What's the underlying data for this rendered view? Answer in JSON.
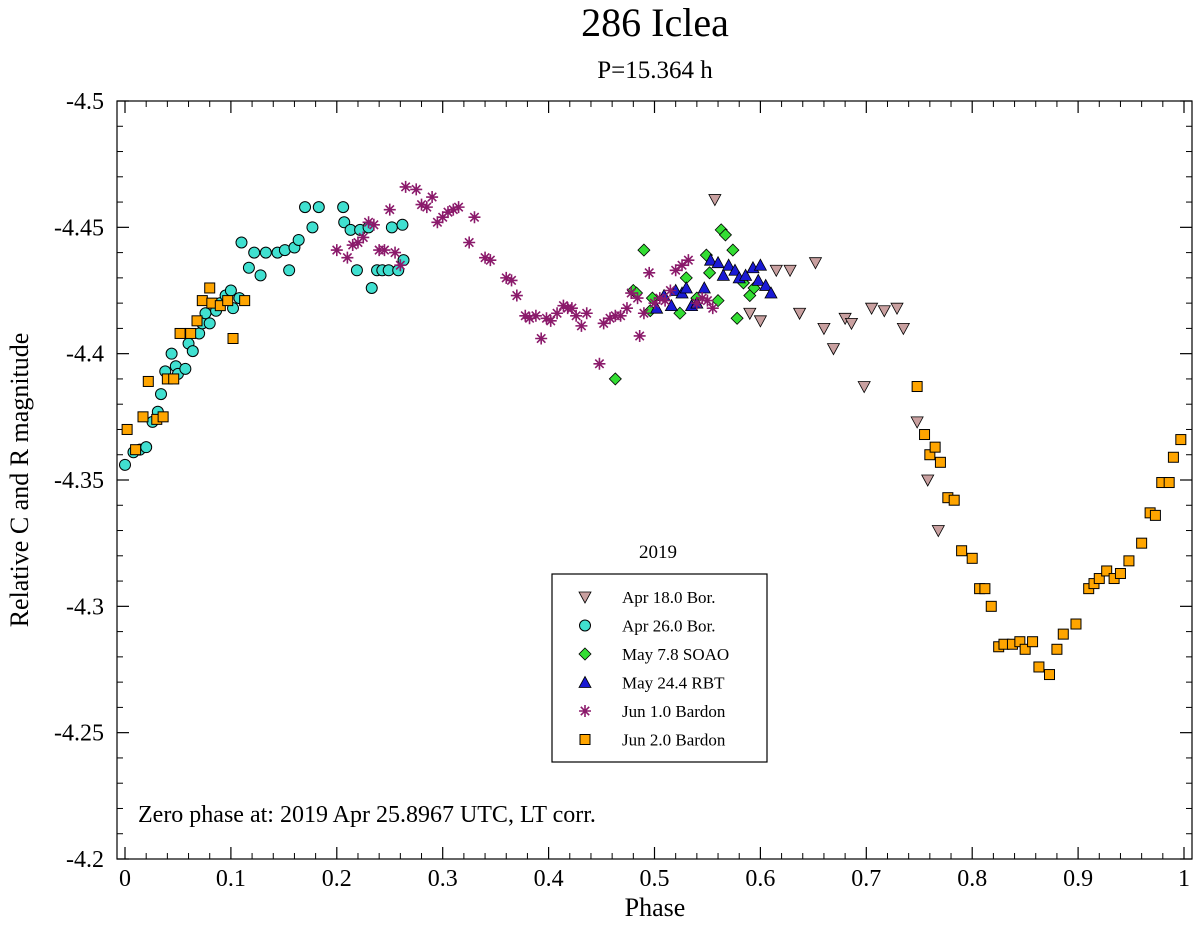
{
  "chart_data": {
    "type": "scatter",
    "title": "286 Iclea",
    "subtitle": "P=15.364 h",
    "xlabel": "Phase",
    "ylabel": "Relative C and R magnitude",
    "xlim": [
      0,
      1
    ],
    "ylim": [
      -4.5,
      -4.2
    ],
    "y_inverted": true,
    "xticks": [
      0,
      0.1,
      0.2,
      0.3,
      0.4,
      0.5,
      0.6,
      0.7,
      0.8,
      0.9,
      1
    ],
    "xtick_labels": [
      "0",
      "0.1",
      "0.2",
      "0.3",
      "0.4",
      "0.5",
      "0.6",
      "0.7",
      "0.8",
      "0.9",
      "1"
    ],
    "yticks": [
      -4.5,
      -4.45,
      -4.4,
      -4.35,
      -4.3,
      -4.25,
      -4.2
    ],
    "ytick_labels": [
      "-4.5",
      "-4.45",
      "-4.4",
      "-4.35",
      "-4.3",
      "-4.25",
      "-4.2"
    ],
    "grid": false,
    "legend": {
      "title": "2019",
      "position": "bottom-center"
    },
    "annotation": "Zero phase at: 2019 Apr 25.8967 UTC, LT corr.",
    "series": [
      {
        "name": "Apr 18.0 Bor.",
        "marker": "triangle-down",
        "color": "#c9a0a0",
        "points": [
          [
            0.557,
            -4.461
          ],
          [
            0.59,
            -4.416
          ],
          [
            0.6,
            -4.413
          ],
          [
            0.615,
            -4.433
          ],
          [
            0.628,
            -4.433
          ],
          [
            0.637,
            -4.416
          ],
          [
            0.652,
            -4.436
          ],
          [
            0.66,
            -4.41
          ],
          [
            0.669,
            -4.402
          ],
          [
            0.68,
            -4.414
          ],
          [
            0.686,
            -4.412
          ],
          [
            0.698,
            -4.387
          ],
          [
            0.705,
            -4.418
          ],
          [
            0.717,
            -4.417
          ],
          [
            0.729,
            -4.418
          ],
          [
            0.735,
            -4.41
          ],
          [
            0.748,
            -4.373
          ],
          [
            0.758,
            -4.35
          ],
          [
            0.768,
            -4.33
          ]
        ]
      },
      {
        "name": "Apr 26.0 Bor.",
        "marker": "circle",
        "color": "#40e0d0",
        "points": [
          [
            0.0,
            -4.356
          ],
          [
            0.008,
            -4.361
          ],
          [
            0.014,
            -4.362
          ],
          [
            0.02,
            -4.363
          ],
          [
            0.026,
            -4.373
          ],
          [
            0.031,
            -4.377
          ],
          [
            0.034,
            -4.384
          ],
          [
            0.038,
            -4.393
          ],
          [
            0.044,
            -4.4
          ],
          [
            0.048,
            -4.395
          ],
          [
            0.05,
            -4.392
          ],
          [
            0.057,
            -4.394
          ],
          [
            0.06,
            -4.404
          ],
          [
            0.064,
            -4.401
          ],
          [
            0.07,
            -4.408
          ],
          [
            0.073,
            -4.412
          ],
          [
            0.076,
            -4.416
          ],
          [
            0.08,
            -4.412
          ],
          [
            0.086,
            -4.417
          ],
          [
            0.09,
            -4.42
          ],
          [
            0.095,
            -4.423
          ],
          [
            0.1,
            -4.425
          ],
          [
            0.102,
            -4.418
          ],
          [
            0.108,
            -4.422
          ],
          [
            0.11,
            -4.444
          ],
          [
            0.117,
            -4.434
          ],
          [
            0.122,
            -4.44
          ],
          [
            0.128,
            -4.431
          ],
          [
            0.133,
            -4.44
          ],
          [
            0.144,
            -4.44
          ],
          [
            0.151,
            -4.441
          ],
          [
            0.155,
            -4.433
          ],
          [
            0.16,
            -4.442
          ],
          [
            0.164,
            -4.445
          ],
          [
            0.17,
            -4.458
          ],
          [
            0.177,
            -4.45
          ],
          [
            0.183,
            -4.458
          ],
          [
            0.206,
            -4.458
          ],
          [
            0.207,
            -4.452
          ],
          [
            0.213,
            -4.449
          ],
          [
            0.219,
            -4.433
          ],
          [
            0.222,
            -4.449
          ],
          [
            0.23,
            -4.45
          ],
          [
            0.233,
            -4.426
          ],
          [
            0.238,
            -4.433
          ],
          [
            0.243,
            -4.433
          ],
          [
            0.249,
            -4.433
          ],
          [
            0.252,
            -4.45
          ],
          [
            0.258,
            -4.433
          ],
          [
            0.262,
            -4.451
          ],
          [
            0.263,
            -4.437
          ]
        ]
      },
      {
        "name": "May 7.8 SOAO",
        "marker": "diamond",
        "color": "#33dd33",
        "points": [
          [
            0.463,
            -4.39
          ],
          [
            0.48,
            -4.425
          ],
          [
            0.483,
            -4.424
          ],
          [
            0.49,
            -4.441
          ],
          [
            0.496,
            -4.417
          ],
          [
            0.498,
            -4.422
          ],
          [
            0.524,
            -4.416
          ],
          [
            0.53,
            -4.43
          ],
          [
            0.54,
            -4.422
          ],
          [
            0.549,
            -4.439
          ],
          [
            0.552,
            -4.432
          ],
          [
            0.56,
            -4.421
          ],
          [
            0.563,
            -4.449
          ],
          [
            0.567,
            -4.447
          ],
          [
            0.574,
            -4.441
          ],
          [
            0.578,
            -4.414
          ],
          [
            0.584,
            -4.428
          ],
          [
            0.59,
            -4.423
          ],
          [
            0.594,
            -4.426
          ]
        ]
      },
      {
        "name": "May 24.4 RBT",
        "marker": "triangle-up",
        "color": "#1a1ad4",
        "points": [
          [
            0.502,
            -4.418
          ],
          [
            0.509,
            -4.423
          ],
          [
            0.516,
            -4.419
          ],
          [
            0.52,
            -4.425
          ],
          [
            0.526,
            -4.424
          ],
          [
            0.53,
            -4.426
          ],
          [
            0.535,
            -4.419
          ],
          [
            0.54,
            -4.42
          ],
          [
            0.547,
            -4.426
          ],
          [
            0.553,
            -4.437
          ],
          [
            0.56,
            -4.436
          ],
          [
            0.565,
            -4.431
          ],
          [
            0.57,
            -4.435
          ],
          [
            0.576,
            -4.433
          ],
          [
            0.58,
            -4.43
          ],
          [
            0.586,
            -4.431
          ],
          [
            0.593,
            -4.434
          ],
          [
            0.598,
            -4.429
          ],
          [
            0.6,
            -4.435
          ],
          [
            0.605,
            -4.427
          ],
          [
            0.61,
            -4.424
          ]
        ]
      },
      {
        "name": "Jun 1.0 Bardon",
        "marker": "asterisk",
        "color": "#8b1a6b",
        "points": [
          [
            0.2,
            -4.441
          ],
          [
            0.21,
            -4.438
          ],
          [
            0.215,
            -4.443
          ],
          [
            0.22,
            -4.444
          ],
          [
            0.225,
            -4.446
          ],
          [
            0.23,
            -4.452
          ],
          [
            0.235,
            -4.451
          ],
          [
            0.24,
            -4.441
          ],
          [
            0.245,
            -4.441
          ],
          [
            0.25,
            -4.457
          ],
          [
            0.255,
            -4.44
          ],
          [
            0.26,
            -4.435
          ],
          [
            0.265,
            -4.466
          ],
          [
            0.275,
            -4.465
          ],
          [
            0.28,
            -4.459
          ],
          [
            0.285,
            -4.458
          ],
          [
            0.29,
            -4.462
          ],
          [
            0.295,
            -4.452
          ],
          [
            0.3,
            -4.454
          ],
          [
            0.305,
            -4.456
          ],
          [
            0.31,
            -4.457
          ],
          [
            0.315,
            -4.458
          ],
          [
            0.325,
            -4.444
          ],
          [
            0.33,
            -4.454
          ],
          [
            0.34,
            -4.438
          ],
          [
            0.345,
            -4.437
          ],
          [
            0.36,
            -4.43
          ],
          [
            0.365,
            -4.429
          ],
          [
            0.37,
            -4.423
          ],
          [
            0.378,
            -4.415
          ],
          [
            0.382,
            -4.414
          ],
          [
            0.388,
            -4.415
          ],
          [
            0.393,
            -4.406
          ],
          [
            0.398,
            -4.414
          ],
          [
            0.402,
            -4.413
          ],
          [
            0.408,
            -4.416
          ],
          [
            0.414,
            -4.419
          ],
          [
            0.418,
            -4.418
          ],
          [
            0.422,
            -4.418
          ],
          [
            0.426,
            -4.415
          ],
          [
            0.431,
            -4.411
          ],
          [
            0.436,
            -4.416
          ],
          [
            0.448,
            -4.396
          ],
          [
            0.452,
            -4.412
          ],
          [
            0.458,
            -4.414
          ],
          [
            0.463,
            -4.415
          ],
          [
            0.468,
            -4.415
          ],
          [
            0.474,
            -4.418
          ],
          [
            0.478,
            -4.424
          ],
          [
            0.484,
            -4.422
          ],
          [
            0.486,
            -4.407
          ],
          [
            0.49,
            -4.416
          ],
          [
            0.495,
            -4.432
          ],
          [
            0.5,
            -4.42
          ],
          [
            0.505,
            -4.422
          ],
          [
            0.51,
            -4.421
          ],
          [
            0.515,
            -4.425
          ],
          [
            0.52,
            -4.433
          ],
          [
            0.526,
            -4.435
          ],
          [
            0.532,
            -4.437
          ],
          [
            0.54,
            -4.42
          ],
          [
            0.545,
            -4.422
          ],
          [
            0.55,
            -4.421
          ],
          [
            0.555,
            -4.418
          ]
        ]
      },
      {
        "name": "Jun 2.0 Bardon",
        "marker": "square",
        "color": "#ffa500",
        "points": [
          [
            0.002,
            -4.37
          ],
          [
            0.01,
            -4.362
          ],
          [
            0.017,
            -4.375
          ],
          [
            0.022,
            -4.389
          ],
          [
            0.03,
            -4.374
          ],
          [
            0.036,
            -4.375
          ],
          [
            0.04,
            -4.39
          ],
          [
            0.046,
            -4.39
          ],
          [
            0.052,
            -4.408
          ],
          [
            0.062,
            -4.408
          ],
          [
            0.068,
            -4.413
          ],
          [
            0.073,
            -4.421
          ],
          [
            0.08,
            -4.426
          ],
          [
            0.082,
            -4.42
          ],
          [
            0.09,
            -4.419
          ],
          [
            0.097,
            -4.421
          ],
          [
            0.102,
            -4.406
          ],
          [
            0.113,
            -4.421
          ],
          [
            0.748,
            -4.387
          ],
          [
            0.755,
            -4.368
          ],
          [
            0.76,
            -4.36
          ],
          [
            0.765,
            -4.363
          ],
          [
            0.77,
            -4.357
          ],
          [
            0.777,
            -4.343
          ],
          [
            0.783,
            -4.342
          ],
          [
            0.79,
            -4.322
          ],
          [
            0.8,
            -4.319
          ],
          [
            0.807,
            -4.307
          ],
          [
            0.812,
            -4.307
          ],
          [
            0.818,
            -4.3
          ],
          [
            0.825,
            -4.284
          ],
          [
            0.83,
            -4.285
          ],
          [
            0.838,
            -4.285
          ],
          [
            0.845,
            -4.286
          ],
          [
            0.85,
            -4.283
          ],
          [
            0.857,
            -4.286
          ],
          [
            0.863,
            -4.276
          ],
          [
            0.873,
            -4.273
          ],
          [
            0.88,
            -4.283
          ],
          [
            0.886,
            -4.289
          ],
          [
            0.898,
            -4.293
          ],
          [
            0.91,
            -4.307
          ],
          [
            0.915,
            -4.309
          ],
          [
            0.92,
            -4.311
          ],
          [
            0.927,
            -4.314
          ],
          [
            0.934,
            -4.311
          ],
          [
            0.94,
            -4.313
          ],
          [
            0.948,
            -4.318
          ],
          [
            0.96,
            -4.325
          ],
          [
            0.968,
            -4.337
          ],
          [
            0.973,
            -4.336
          ],
          [
            0.979,
            -4.349
          ],
          [
            0.986,
            -4.349
          ],
          [
            0.99,
            -4.359
          ],
          [
            0.997,
            -4.366
          ]
        ]
      }
    ]
  }
}
